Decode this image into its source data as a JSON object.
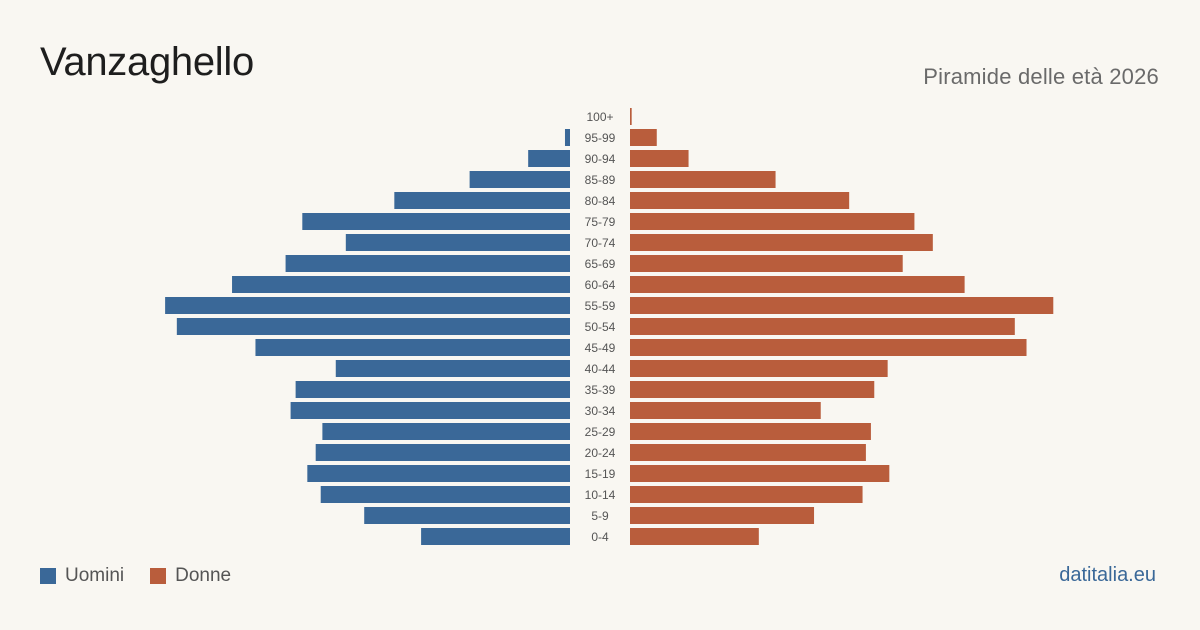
{
  "header": {
    "title": "Vanzaghello",
    "subtitle": "Piramide delle età 2026"
  },
  "legend": {
    "men_label": "Uomini",
    "women_label": "Donne"
  },
  "source": "datitalia.eu",
  "colors": {
    "men": "#3a6898",
    "women": "#b95d3c",
    "background": "#f9f7f2"
  },
  "chart_data": {
    "type": "bar",
    "orientation": "horizontal-pyramid",
    "categories": [
      "100+",
      "95-99",
      "90-94",
      "85-89",
      "80-84",
      "75-79",
      "70-74",
      "65-69",
      "60-64",
      "55-59",
      "50-54",
      "45-49",
      "40-44",
      "35-39",
      "30-34",
      "25-29",
      "20-24",
      "15-19",
      "10-14",
      "5-9",
      "0-4"
    ],
    "series": [
      {
        "name": "Uomini",
        "values": [
          0,
          3,
          25,
          60,
          105,
          160,
          134,
          170,
          202,
          242,
          235,
          188,
          140,
          164,
          167,
          148,
          152,
          157,
          149,
          123,
          89
        ]
      },
      {
        "name": "Donne",
        "values": [
          1,
          16,
          35,
          87,
          131,
          170,
          181,
          163,
          200,
          253,
          230,
          237,
          154,
          146,
          114,
          144,
          141,
          155,
          139,
          110,
          77
        ]
      }
    ],
    "xlim": [
      0,
      260
    ],
    "grid": false,
    "legend_position": "bottom-left"
  }
}
